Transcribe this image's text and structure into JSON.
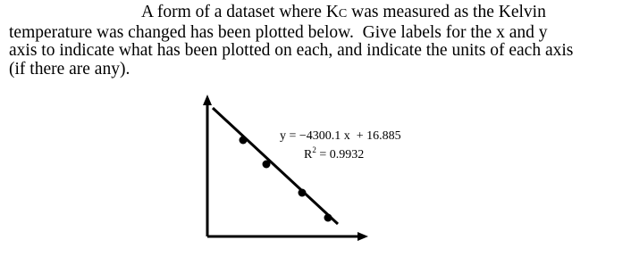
{
  "question": {
    "lines": [
      [
        "A form of a dataset where K",
        "C",
        " was measured as the Kelvin"
      ],
      [
        "temperature was changed has been plotted below.  Give labels for the x and y"
      ],
      [
        "axis to indicate what has been plotted on each, and indicate the units of each axis"
      ],
      [
        "(if there are any)."
      ]
    ]
  },
  "figure": {
    "equation": "y = −4300.1 x  + 16.885",
    "r_squared": [
      "R",
      "2",
      " = 0.9932"
    ]
  }
}
